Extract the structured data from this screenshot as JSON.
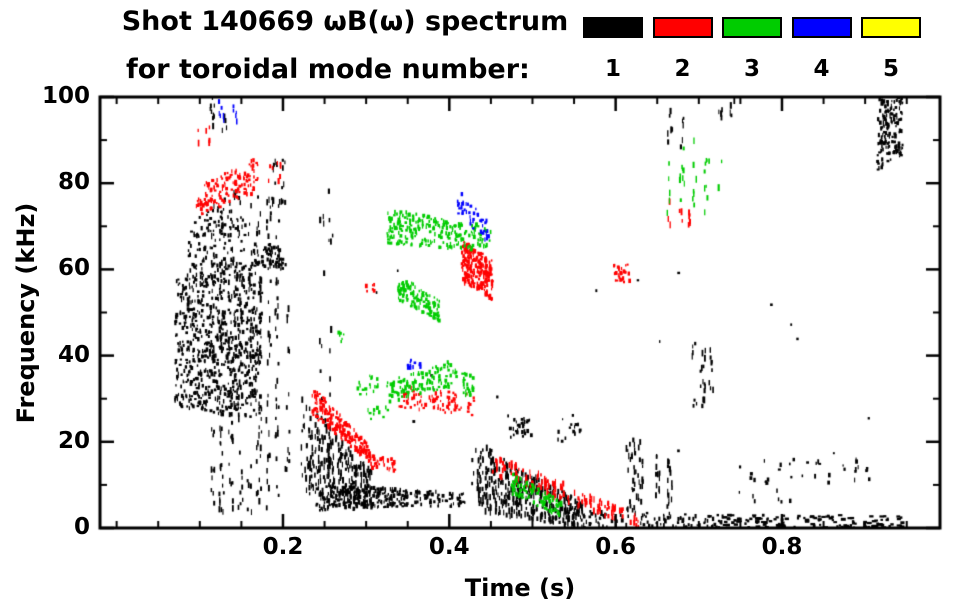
{
  "chart_data": {
    "type": "scatter",
    "title": "Shot 140669 ωB(ω) spectrum",
    "subtitle": "for toroidal mode number:",
    "xlabel": "Time (s)",
    "ylabel": "Frequency (kHz)",
    "xlim": [
      -0.02,
      0.99
    ],
    "ylim": [
      0,
      100
    ],
    "grid": false,
    "x_major_ticks": [
      0.2,
      0.4,
      0.6,
      0.8
    ],
    "x_tick_labels": [
      "0.2",
      "0.4",
      "0.6",
      "0.8"
    ],
    "x_minor_step": 0.05,
    "y_major_ticks": [
      0,
      20,
      40,
      60,
      80,
      100
    ],
    "y_tick_labels": [
      "0",
      "20",
      "40",
      "60",
      "80",
      "100"
    ],
    "y_minor_step": 10,
    "legend": {
      "position": "top-right",
      "items": [
        {
          "label": "1",
          "color": "#000000"
        },
        {
          "label": "2",
          "color": "#ff0000"
        },
        {
          "label": "3",
          "color": "#00cc00"
        },
        {
          "label": "4",
          "color": "#0000ff"
        },
        {
          "label": "5",
          "color": "#ffff00"
        }
      ]
    },
    "series": [
      {
        "name": "toroidal mode n=1",
        "color": "#000000",
        "clusters": [
          {
            "t": [
              0.07,
              0.175
            ],
            "f0": [
              28,
              58
            ],
            "f1": [
              25,
              62
            ],
            "n": 700
          },
          {
            "t": [
              0.085,
              0.155
            ],
            "f0": [
              55,
              70
            ],
            "f1": [
              58,
              80
            ],
            "n": 160
          },
          {
            "t": [
              0.115,
              0.205
            ],
            "f0": [
              3,
              75
            ],
            "f1": [
              3,
              78
            ],
            "n": 260,
            "cols": 9
          },
          {
            "t": [
              0.165,
              0.2
            ],
            "f0": [
              60,
              66
            ],
            "f1": [
              60,
              66
            ],
            "n": 60
          },
          {
            "t": [
              0.19,
              0.2
            ],
            "f0": [
              75,
              86
            ],
            "f1": [
              75,
              86
            ],
            "n": 18,
            "cols": 2
          },
          {
            "t": [
              0.115,
              0.13
            ],
            "f0": [
              92,
              100
            ],
            "f1": [
              92,
              100
            ],
            "n": 14,
            "cols": 2
          },
          {
            "t": [
              0.225,
              0.305
            ],
            "f0": [
              8,
              30
            ],
            "f1": [
              5,
              14
            ],
            "n": 260,
            "cols": 14
          },
          {
            "t": [
              0.24,
              0.35
            ],
            "f0": [
              4,
              10
            ],
            "f1": [
              5,
              9
            ],
            "n": 220
          },
          {
            "t": [
              0.247,
              0.257
            ],
            "f0": [
              10,
              80
            ],
            "f1": [
              10,
              80
            ],
            "n": 35,
            "cols": 2
          },
          {
            "t": [
              0.35,
              0.42
            ],
            "f0": [
              5,
              9
            ],
            "f1": [
              5,
              8
            ],
            "n": 60
          },
          {
            "t": [
              0.43,
              0.56
            ],
            "f0": [
              4,
              20
            ],
            "f1": [
              0,
              6
            ],
            "n": 420,
            "cols": 22
          },
          {
            "t": [
              0.47,
              0.5
            ],
            "f0": [
              21,
              27
            ],
            "f1": [
              21,
              25
            ],
            "n": 30
          },
          {
            "t": [
              0.53,
              0.56
            ],
            "f0": [
              20,
              26
            ],
            "f1": [
              20,
              24
            ],
            "n": 15
          },
          {
            "t": [
              0.56,
              0.73
            ],
            "f0": [
              0,
              4
            ],
            "f1": [
              0,
              3
            ],
            "n": 90
          },
          {
            "t": [
              0.615,
              0.63
            ],
            "f0": [
              2,
              22
            ],
            "f1": [
              2,
              20
            ],
            "n": 45,
            "cols": 3
          },
          {
            "t": [
              0.65,
              0.665
            ],
            "f0": [
              4,
              18
            ],
            "f1": [
              4,
              16
            ],
            "n": 28,
            "cols": 2
          },
          {
            "t": [
              0.695,
              0.715
            ],
            "f0": [
              28,
              46
            ],
            "f1": [
              28,
              44
            ],
            "n": 30,
            "cols": 3
          },
          {
            "t": [
              0.73,
              0.95
            ],
            "f0": [
              0,
              3
            ],
            "f1": [
              0,
              3
            ],
            "n": 130,
            "w": [
              2,
              5
            ],
            "h": [
              2,
              3
            ]
          },
          {
            "t": [
              0.75,
              0.92
            ],
            "f0": [
              6,
              16
            ],
            "f1": [
              6,
              16
            ],
            "n": 40,
            "cols": 12,
            "w": [
              1,
              3
            ],
            "h": [
              2,
              5
            ]
          },
          {
            "t": [
              0.915,
              0.945
            ],
            "f0": [
              83,
              100
            ],
            "f1": [
              86,
              100
            ],
            "n": 160
          },
          {
            "t": [
              0.665,
              0.68
            ],
            "f0": [
              88,
              97
            ],
            "f1": [
              88,
              97
            ],
            "n": 12,
            "cols": 2
          },
          {
            "t": [
              0.725,
              0.74
            ],
            "f0": [
              95,
              100
            ],
            "f1": [
              95,
              100
            ],
            "n": 8,
            "cols": 2
          },
          {
            "t": [
              0.3,
              0.92
            ],
            "f0": [
              15,
              60
            ],
            "f1": [
              15,
              60
            ],
            "n": 18,
            "w": [
              1,
              3
            ],
            "h": [
              2,
              3
            ]
          }
        ]
      },
      {
        "name": "toroidal mode n=2",
        "color": "#ff0000",
        "clusters": [
          {
            "t": [
              0.095,
              0.17
            ],
            "f0": [
              72,
              79
            ],
            "f1": [
              78,
              86
            ],
            "n": 140
          },
          {
            "t": [
              0.1,
              0.11
            ],
            "f0": [
              89,
              93
            ],
            "f1": [
              89,
              93
            ],
            "n": 6,
            "cols": 1
          },
          {
            "t": [
              0.185,
              0.195
            ],
            "f0": [
              80,
              85
            ],
            "f1": [
              80,
              85
            ],
            "n": 8,
            "cols": 1
          },
          {
            "t": [
              0.235,
              0.305
            ],
            "f0": [
              26,
              33
            ],
            "f1": [
              15,
              19
            ],
            "n": 190
          },
          {
            "t": [
              0.305,
              0.335
            ],
            "f0": [
              14,
              17
            ],
            "f1": [
              13,
              16
            ],
            "n": 35
          },
          {
            "t": [
              0.34,
              0.43
            ],
            "f0": [
              28,
              33
            ],
            "f1": [
              26,
              31
            ],
            "n": 85
          },
          {
            "t": [
              0.415,
              0.452
            ],
            "f0": [
              57,
              67
            ],
            "f1": [
              53,
              62
            ],
            "n": 230
          },
          {
            "t": [
              0.455,
              0.625
            ],
            "f0": [
              12,
              17
            ],
            "f1": [
              0,
              3
            ],
            "n": 150,
            "cols": 20
          },
          {
            "t": [
              0.598,
              0.617
            ],
            "f0": [
              57,
              62
            ],
            "f1": [
              57,
              61
            ],
            "n": 28
          },
          {
            "t": [
              0.665,
              0.69
            ],
            "f0": [
              69,
              76
            ],
            "f1": [
              69,
              74
            ],
            "n": 12,
            "cols": 3
          },
          {
            "t": [
              0.3,
              0.31
            ],
            "f0": [
              54,
              57
            ],
            "f1": [
              54,
              57
            ],
            "n": 6
          }
        ]
      },
      {
        "name": "toroidal mode n=3",
        "color": "#00cc00",
        "clusters": [
          {
            "t": [
              0.325,
              0.45
            ],
            "f0": [
              66,
              74
            ],
            "f1": [
              64,
              70
            ],
            "n": 240
          },
          {
            "t": [
              0.338,
              0.388
            ],
            "f0": [
              53,
              59
            ],
            "f1": [
              48,
              53
            ],
            "n": 130
          },
          {
            "t": [
              0.325,
              0.405
            ],
            "f0": [
              29,
              34
            ],
            "f1": [
              33,
              39
            ],
            "n": 120
          },
          {
            "t": [
              0.405,
              0.43
            ],
            "f0": [
              32,
              37
            ],
            "f1": [
              30,
              35
            ],
            "n": 30
          },
          {
            "t": [
              0.475,
              0.535
            ],
            "f0": [
              8,
              13
            ],
            "f1": [
              2,
              6
            ],
            "n": 100
          },
          {
            "t": [
              0.665,
              0.725
            ],
            "f0": [
              73,
              90
            ],
            "f1": [
              73,
              90
            ],
            "n": 32,
            "cols": 5
          },
          {
            "t": [
              0.29,
              0.315
            ],
            "f0": [
              31,
              36
            ],
            "f1": [
              31,
              35
            ],
            "n": 18
          },
          {
            "t": [
              0.265,
              0.275
            ],
            "f0": [
              43,
              46
            ],
            "f1": [
              43,
              46
            ],
            "n": 6
          },
          {
            "t": [
              0.3,
              0.33
            ],
            "f0": [
              25,
              28
            ],
            "f1": [
              25,
              28
            ],
            "n": 10
          }
        ]
      },
      {
        "name": "toroidal mode n=4",
        "color": "#0000ff",
        "clusters": [
          {
            "t": [
              0.126,
              0.142
            ],
            "f0": [
              94,
              100
            ],
            "f1": [
              94,
              100
            ],
            "n": 12,
            "cols": 2
          },
          {
            "t": [
              0.408,
              0.448
            ],
            "f0": [
              73,
              79
            ],
            "f1": [
              66,
              71
            ],
            "n": 45
          },
          {
            "t": [
              0.348,
              0.366
            ],
            "f0": [
              37,
              41
            ],
            "f1": [
              37,
              40
            ],
            "n": 12
          }
        ]
      },
      {
        "name": "toroidal mode n=5",
        "color": "#ffff00",
        "clusters": []
      }
    ]
  }
}
